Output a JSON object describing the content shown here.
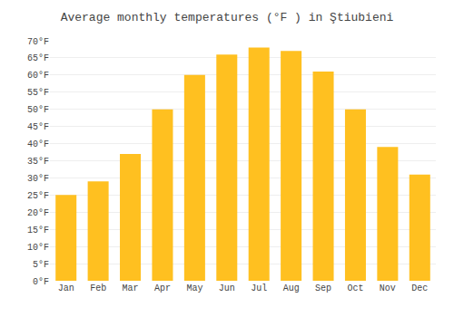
{
  "chart_data": {
    "type": "bar",
    "title": "Average monthly temperatures (°F ) in Ştiubieni",
    "categories": [
      "Jan",
      "Feb",
      "Mar",
      "Apr",
      "May",
      "Jun",
      "Jul",
      "Aug",
      "Sep",
      "Oct",
      "Nov",
      "Dec"
    ],
    "values": [
      25,
      29,
      37,
      50,
      60,
      66,
      68,
      67,
      61,
      50,
      39,
      31
    ],
    "color": "#FFC020",
    "ylim": [
      0,
      70
    ],
    "yticks": [
      {
        "value": 0,
        "label": "0°F"
      },
      {
        "value": 5,
        "label": "5°F"
      },
      {
        "value": 10,
        "label": "10°F"
      },
      {
        "value": 15,
        "label": "15°F"
      },
      {
        "value": 20,
        "label": "20°F"
      },
      {
        "value": 25,
        "label": "25°F"
      },
      {
        "value": 30,
        "label": "30°F"
      },
      {
        "value": 35,
        "label": "35°F"
      },
      {
        "value": 40,
        "label": "40°F"
      },
      {
        "value": 45,
        "label": "45°F"
      },
      {
        "value": 50,
        "label": "50°F"
      },
      {
        "value": 55,
        "label": "55°F"
      },
      {
        "value": 60,
        "label": "60°F"
      },
      {
        "value": 65,
        "label": "65°F"
      },
      {
        "value": 70,
        "label": "70°F"
      }
    ],
    "grid": true
  }
}
